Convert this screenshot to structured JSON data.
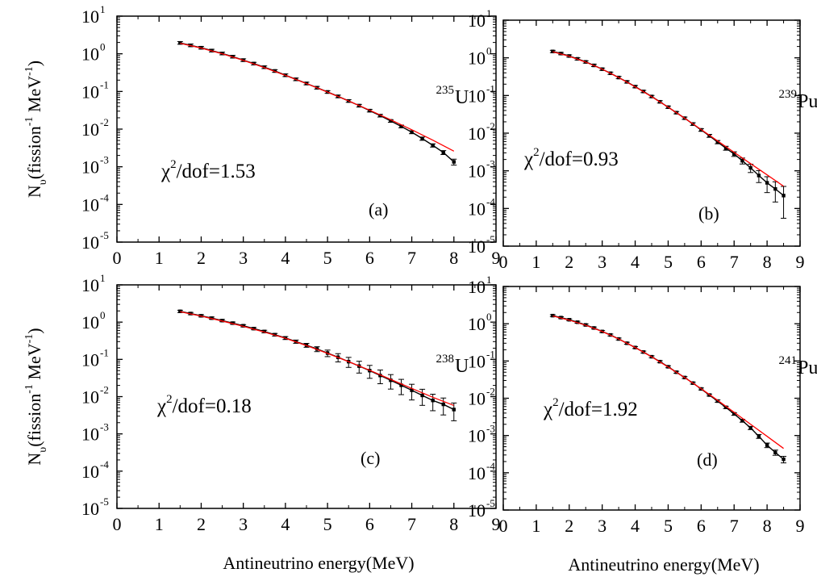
{
  "chart_data": [
    {
      "type": "line",
      "panel_label": "(a)",
      "isotope_mass": "235",
      "isotope_symbol": "U",
      "chi_text": "/dof=1.53",
      "xlabel": "",
      "ylabel": "N_υ (fission^-1 MeV^-1)",
      "xlim": [
        0,
        9
      ],
      "ylim_exp": [
        -5,
        1
      ],
      "y_scale": "log",
      "series": [
        {
          "style": "data with error bars",
          "color": "#000000",
          "x": [
            1.5,
            1.75,
            2.0,
            2.25,
            2.5,
            2.75,
            3.0,
            3.25,
            3.5,
            3.75,
            4.0,
            4.25,
            4.5,
            4.75,
            5.0,
            5.25,
            5.5,
            5.75,
            6.0,
            6.25,
            6.5,
            6.75,
            7.0,
            7.25,
            7.5,
            7.75,
            8.0
          ],
          "y": [
            1.95,
            1.68,
            1.45,
            1.22,
            1.02,
            0.84,
            0.68,
            0.55,
            0.44,
            0.35,
            0.27,
            0.21,
            0.163,
            0.126,
            0.097,
            0.074,
            0.056,
            0.042,
            0.031,
            0.0228,
            0.0165,
            0.0118,
            0.0083,
            0.0056,
            0.0037,
            0.0024,
            0.00135
          ],
          "err_rel": [
            0.08,
            0.08,
            0.08,
            0.08,
            0.08,
            0.08,
            0.08,
            0.08,
            0.08,
            0.08,
            0.08,
            0.08,
            0.08,
            0.08,
            0.08,
            0.08,
            0.08,
            0.08,
            0.08,
            0.08,
            0.08,
            0.08,
            0.09,
            0.1,
            0.1,
            0.12,
            0.18
          ]
        },
        {
          "style": "fit",
          "color": "#ff0000",
          "x": [
            1.5,
            2.0,
            2.5,
            3.0,
            3.5,
            4.0,
            4.5,
            5.0,
            5.5,
            6.0,
            6.5,
            7.0,
            7.5,
            8.0
          ],
          "y": [
            1.9,
            1.42,
            1.0,
            0.67,
            0.43,
            0.268,
            0.162,
            0.096,
            0.056,
            0.0318,
            0.0177,
            0.0096,
            0.0051,
            0.0026
          ]
        }
      ]
    },
    {
      "type": "line",
      "panel_label": "(b)",
      "isotope_mass": "239",
      "isotope_symbol": "Pu",
      "chi_text": "/dof=0.93",
      "xlabel": "",
      "ylabel": "",
      "xlim": [
        0,
        9
      ],
      "ylim_exp": [
        -5,
        1
      ],
      "y_scale": "log",
      "series": [
        {
          "style": "data with error bars",
          "color": "#000000",
          "x": [
            1.5,
            1.75,
            2.0,
            2.25,
            2.5,
            2.75,
            3.0,
            3.25,
            3.5,
            3.75,
            4.0,
            4.25,
            4.5,
            4.75,
            5.0,
            5.25,
            5.5,
            5.75,
            6.0,
            6.25,
            6.5,
            6.75,
            7.0,
            7.25,
            7.5,
            7.75,
            8.0,
            8.25,
            8.5
          ],
          "y": [
            1.48,
            1.3,
            1.12,
            0.94,
            0.78,
            0.63,
            0.5,
            0.39,
            0.3,
            0.23,
            0.172,
            0.128,
            0.094,
            0.068,
            0.049,
            0.035,
            0.025,
            0.0175,
            0.0122,
            0.0085,
            0.0058,
            0.004,
            0.0028,
            0.00185,
            0.0012,
            0.00075,
            0.00048,
            0.00033,
            0.00022
          ],
          "err_rel": [
            0.07,
            0.07,
            0.07,
            0.07,
            0.07,
            0.07,
            0.07,
            0.07,
            0.07,
            0.07,
            0.07,
            0.07,
            0.07,
            0.07,
            0.07,
            0.07,
            0.07,
            0.08,
            0.08,
            0.09,
            0.1,
            0.12,
            0.14,
            0.18,
            0.25,
            0.35,
            0.45,
            0.55,
            0.75
          ]
        },
        {
          "style": "fit",
          "color": "#ff0000",
          "x": [
            1.5,
            2.0,
            2.5,
            3.0,
            3.5,
            4.0,
            4.5,
            5.0,
            5.5,
            6.0,
            6.5,
            7.0,
            7.5,
            8.0,
            8.5
          ],
          "y": [
            1.45,
            1.1,
            0.77,
            0.5,
            0.3,
            0.17,
            0.093,
            0.049,
            0.025,
            0.0125,
            0.0062,
            0.0031,
            0.00155,
            0.00078,
            0.00039
          ]
        }
      ]
    },
    {
      "type": "line",
      "panel_label": "(c)",
      "isotope_mass": "238",
      "isotope_symbol": "U",
      "chi_text": "/dof=0.18",
      "xlabel": "Antineutrino energy(MeV)",
      "ylabel": "N_υ (fission^-1 MeV^-1)",
      "xlim": [
        0,
        9
      ],
      "ylim_exp": [
        -5,
        1
      ],
      "y_scale": "log",
      "series": [
        {
          "style": "data with error bars",
          "color": "#000000",
          "x": [
            1.5,
            1.75,
            2.0,
            2.25,
            2.5,
            2.75,
            3.0,
            3.25,
            3.5,
            3.75,
            4.0,
            4.25,
            4.5,
            4.75,
            5.0,
            5.25,
            5.5,
            5.75,
            6.0,
            6.25,
            6.5,
            6.75,
            7.0,
            7.25,
            7.5,
            7.75,
            8.0
          ],
          "y": [
            1.95,
            1.7,
            1.48,
            1.28,
            1.1,
            0.94,
            0.8,
            0.67,
            0.56,
            0.46,
            0.375,
            0.3,
            0.24,
            0.19,
            0.148,
            0.114,
            0.087,
            0.066,
            0.05,
            0.037,
            0.0275,
            0.0202,
            0.0148,
            0.0108,
            0.0079,
            0.0062,
            0.0045
          ],
          "err_rel": [
            0.07,
            0.07,
            0.07,
            0.07,
            0.07,
            0.07,
            0.07,
            0.07,
            0.08,
            0.08,
            0.09,
            0.1,
            0.12,
            0.15,
            0.2,
            0.25,
            0.3,
            0.35,
            0.38,
            0.4,
            0.42,
            0.44,
            0.45,
            0.46,
            0.47,
            0.48,
            0.5
          ]
        },
        {
          "style": "fit",
          "color": "#ff0000",
          "x": [
            1.5,
            2.0,
            2.5,
            3.0,
            3.5,
            4.0,
            4.5,
            5.0,
            5.5,
            6.0,
            6.5,
            7.0,
            7.5,
            8.0
          ],
          "y": [
            1.9,
            1.45,
            1.07,
            0.77,
            0.54,
            0.37,
            0.235,
            0.145,
            0.087,
            0.051,
            0.029,
            0.0166,
            0.0096,
            0.0058
          ]
        }
      ]
    },
    {
      "type": "line",
      "panel_label": "(d)",
      "isotope_mass": "241",
      "isotope_symbol": "Pu",
      "chi_text": "/dof=1.92",
      "xlabel": "Antineutrino energy(MeV)",
      "ylabel": "",
      "xlim": [
        0,
        9
      ],
      "ylim_exp": [
        -5,
        1
      ],
      "y_scale": "log",
      "series": [
        {
          "style": "data with error bars",
          "color": "#000000",
          "x": [
            1.5,
            1.75,
            2.0,
            2.25,
            2.5,
            2.75,
            3.0,
            3.25,
            3.5,
            3.75,
            4.0,
            4.25,
            4.5,
            4.75,
            5.0,
            5.25,
            5.5,
            5.75,
            6.0,
            6.25,
            6.5,
            6.75,
            7.0,
            7.25,
            7.5,
            7.75,
            8.0,
            8.25,
            8.5
          ],
          "y": [
            1.65,
            1.46,
            1.28,
            1.1,
            0.93,
            0.77,
            0.62,
            0.5,
            0.39,
            0.3,
            0.23,
            0.174,
            0.13,
            0.096,
            0.07,
            0.05,
            0.036,
            0.0255,
            0.0178,
            0.0122,
            0.0084,
            0.0057,
            0.0038,
            0.0025,
            0.0016,
            0.00095,
            0.00055,
            0.00035,
            0.00023
          ],
          "err_rel": [
            0.06,
            0.06,
            0.06,
            0.06,
            0.06,
            0.06,
            0.06,
            0.06,
            0.06,
            0.06,
            0.06,
            0.06,
            0.06,
            0.06,
            0.06,
            0.06,
            0.06,
            0.06,
            0.06,
            0.06,
            0.07,
            0.07,
            0.08,
            0.09,
            0.1,
            0.12,
            0.14,
            0.16,
            0.2
          ]
        },
        {
          "style": "fit",
          "color": "#ff0000",
          "x": [
            1.5,
            2.0,
            2.5,
            3.0,
            3.5,
            4.0,
            4.5,
            5.0,
            5.5,
            6.0,
            6.5,
            7.0,
            7.5,
            8.0,
            8.5
          ],
          "y": [
            1.62,
            1.25,
            0.91,
            0.62,
            0.39,
            0.23,
            0.129,
            0.069,
            0.036,
            0.018,
            0.0088,
            0.0042,
            0.002,
            0.00095,
            0.00045
          ]
        }
      ]
    }
  ]
}
